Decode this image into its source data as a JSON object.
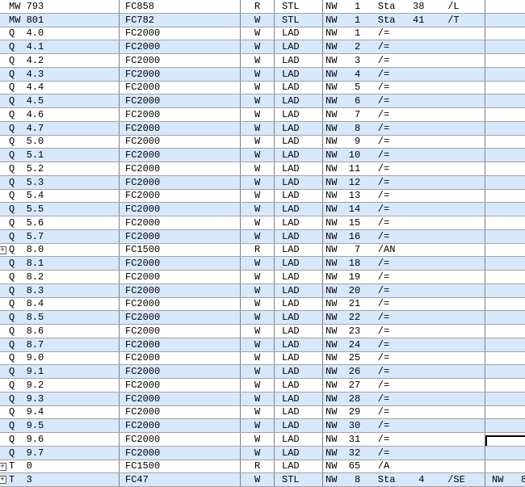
{
  "app": {
    "description": "cross-reference-list-table",
    "expander_glyph": "+"
  },
  "colors": {
    "row_alt_background": "#d8e8fb",
    "row_background": "#ffffff",
    "grid_vertical_line": "#808080",
    "grid_horizontal_line": "#a3a3a3",
    "selection_border": "#000000",
    "text": "#000000"
  },
  "table": {
    "columns": [
      "address",
      "block",
      "access",
      "language",
      "location",
      "extra"
    ],
    "rows": [
      {
        "address": "MW 793",
        "block": "FC858",
        "access": "R",
        "language": "STL",
        "location": "NW   1   Sta   38    /L",
        "extra": ""
      },
      {
        "address": "MW 801",
        "block": "FC782",
        "access": "W",
        "language": "STL",
        "location": "NW   1   Sta   41    /T",
        "extra": ""
      },
      {
        "address": "Q  4.0",
        "block": "FC2000",
        "access": "W",
        "language": "LAD",
        "location": "NW   1   /=",
        "extra": ""
      },
      {
        "address": "Q  4.1",
        "block": "FC2000",
        "access": "W",
        "language": "LAD",
        "location": "NW   2   /=",
        "extra": ""
      },
      {
        "address": "Q  4.2",
        "block": "FC2000",
        "access": "W",
        "language": "LAD",
        "location": "NW   3   /=",
        "extra": ""
      },
      {
        "address": "Q  4.3",
        "block": "FC2000",
        "access": "W",
        "language": "LAD",
        "location": "NW   4   /=",
        "extra": ""
      },
      {
        "address": "Q  4.4",
        "block": "FC2000",
        "access": "W",
        "language": "LAD",
        "location": "NW   5   /=",
        "extra": ""
      },
      {
        "address": "Q  4.5",
        "block": "FC2000",
        "access": "W",
        "language": "LAD",
        "location": "NW   6   /=",
        "extra": ""
      },
      {
        "address": "Q  4.6",
        "block": "FC2000",
        "access": "W",
        "language": "LAD",
        "location": "NW   7   /=",
        "extra": ""
      },
      {
        "address": "Q  4.7",
        "block": "FC2000",
        "access": "W",
        "language": "LAD",
        "location": "NW   8   /=",
        "extra": ""
      },
      {
        "address": "Q  5.0",
        "block": "FC2000",
        "access": "W",
        "language": "LAD",
        "location": "NW   9   /=",
        "extra": ""
      },
      {
        "address": "Q  5.1",
        "block": "FC2000",
        "access": "W",
        "language": "LAD",
        "location": "NW  10   /=",
        "extra": ""
      },
      {
        "address": "Q  5.2",
        "block": "FC2000",
        "access": "W",
        "language": "LAD",
        "location": "NW  11   /=",
        "extra": ""
      },
      {
        "address": "Q  5.3",
        "block": "FC2000",
        "access": "W",
        "language": "LAD",
        "location": "NW  12   /=",
        "extra": ""
      },
      {
        "address": "Q  5.4",
        "block": "FC2000",
        "access": "W",
        "language": "LAD",
        "location": "NW  13   /=",
        "extra": ""
      },
      {
        "address": "Q  5.5",
        "block": "FC2000",
        "access": "W",
        "language": "LAD",
        "location": "NW  14   /=",
        "extra": ""
      },
      {
        "address": "Q  5.6",
        "block": "FC2000",
        "access": "W",
        "language": "LAD",
        "location": "NW  15   /=",
        "extra": ""
      },
      {
        "address": "Q  5.7",
        "block": "FC2000",
        "access": "W",
        "language": "LAD",
        "location": "NW  16   /=",
        "extra": ""
      },
      {
        "address": "Q  8.0",
        "block": "FC1500",
        "access": "R",
        "language": "LAD",
        "location": "NW   7   /AN",
        "extra": "",
        "expander": true
      },
      {
        "address": "Q  8.1",
        "block": "FC2000",
        "access": "W",
        "language": "LAD",
        "location": "NW  18   /=",
        "extra": ""
      },
      {
        "address": "Q  8.2",
        "block": "FC2000",
        "access": "W",
        "language": "LAD",
        "location": "NW  19   /=",
        "extra": ""
      },
      {
        "address": "Q  8.3",
        "block": "FC2000",
        "access": "W",
        "language": "LAD",
        "location": "NW  20   /=",
        "extra": ""
      },
      {
        "address": "Q  8.4",
        "block": "FC2000",
        "access": "W",
        "language": "LAD",
        "location": "NW  21   /=",
        "extra": ""
      },
      {
        "address": "Q  8.5",
        "block": "FC2000",
        "access": "W",
        "language": "LAD",
        "location": "NW  22   /=",
        "extra": ""
      },
      {
        "address": "Q  8.6",
        "block": "FC2000",
        "access": "W",
        "language": "LAD",
        "location": "NW  23   /=",
        "extra": ""
      },
      {
        "address": "Q  8.7",
        "block": "FC2000",
        "access": "W",
        "language": "LAD",
        "location": "NW  24   /=",
        "extra": ""
      },
      {
        "address": "Q  9.0",
        "block": "FC2000",
        "access": "W",
        "language": "LAD",
        "location": "NW  25   /=",
        "extra": ""
      },
      {
        "address": "Q  9.1",
        "block": "FC2000",
        "access": "W",
        "language": "LAD",
        "location": "NW  26   /=",
        "extra": ""
      },
      {
        "address": "Q  9.2",
        "block": "FC2000",
        "access": "W",
        "language": "LAD",
        "location": "NW  27   /=",
        "extra": ""
      },
      {
        "address": "Q  9.3",
        "block": "FC2000",
        "access": "W",
        "language": "LAD",
        "location": "NW  28   /=",
        "extra": ""
      },
      {
        "address": "Q  9.4",
        "block": "FC2000",
        "access": "W",
        "language": "LAD",
        "location": "NW  29   /=",
        "extra": ""
      },
      {
        "address": "Q  9.5",
        "block": "FC2000",
        "access": "W",
        "language": "LAD",
        "location": "NW  30   /=",
        "extra": ""
      },
      {
        "address": "Q  9.6",
        "block": "FC2000",
        "access": "W",
        "language": "LAD",
        "location": "NW  31   /=",
        "extra": "",
        "selected": true
      },
      {
        "address": "Q  9.7",
        "block": "FC2000",
        "access": "W",
        "language": "LAD",
        "location": "NW  32   /=",
        "extra": ""
      },
      {
        "address": "T  0",
        "block": "FC1500",
        "access": "R",
        "language": "LAD",
        "location": "NW  65   /A",
        "extra": "",
        "expander": true
      },
      {
        "address": "T  3",
        "block": "FC47",
        "access": "W",
        "language": "STL",
        "location": "NW   8   Sta    4    /SE",
        "extra": "NW   8",
        "expander": true
      }
    ]
  }
}
